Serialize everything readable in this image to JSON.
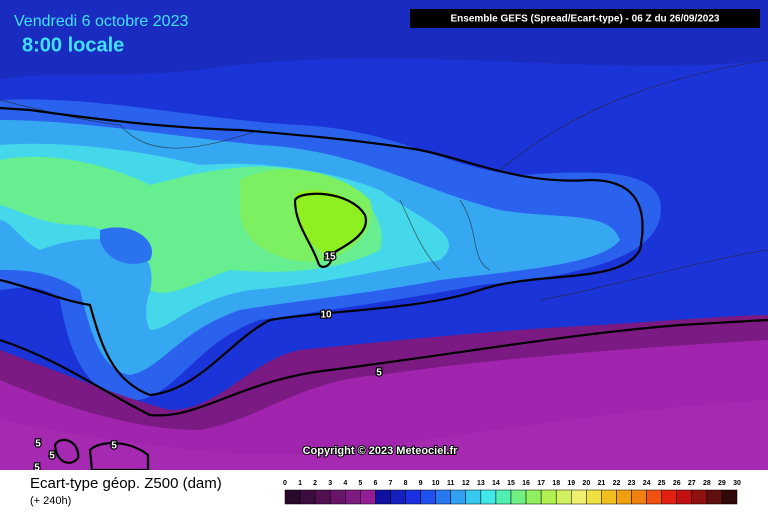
{
  "header": {
    "date": "Vendredi 6 octobre 2023",
    "time": "8:00 locale",
    "source": "Ensemble GEFS  (Spread/Ecart-type) - 06 Z du 26/09/2023"
  },
  "contour_labels": [
    15,
    10,
    5,
    5,
    5,
    5,
    5
  ],
  "copyright": "Copyright © 2023 Meteociel.fr",
  "footer": {
    "title": "Ecart-type géop. Z500 (dam)",
    "lead": "(+ 240h)"
  },
  "scale": {
    "labels": [
      0,
      1,
      2,
      3,
      4,
      5,
      6,
      7,
      8,
      9,
      10,
      11,
      12,
      13,
      14,
      15,
      16,
      17,
      18,
      19,
      20,
      21,
      22,
      23,
      24,
      25,
      26,
      27,
      28,
      29,
      30
    ],
    "colors": [
      "#2a0a2a",
      "#3c0c3e",
      "#521052",
      "#681468",
      "#7e1a80",
      "#941e96",
      "#1010a0",
      "#1420c0",
      "#1830e0",
      "#2050f0",
      "#2878f0",
      "#30a0f0",
      "#38c8f0",
      "#40e8e8",
      "#50f0b0",
      "#70f080",
      "#90f060",
      "#b0f050",
      "#d0f060",
      "#f0f070",
      "#f0e040",
      "#f0c020",
      "#f0a010",
      "#f08010",
      "#f05010",
      "#e02010",
      "#c01010",
      "#901010",
      "#601010",
      "#300808"
    ]
  }
}
